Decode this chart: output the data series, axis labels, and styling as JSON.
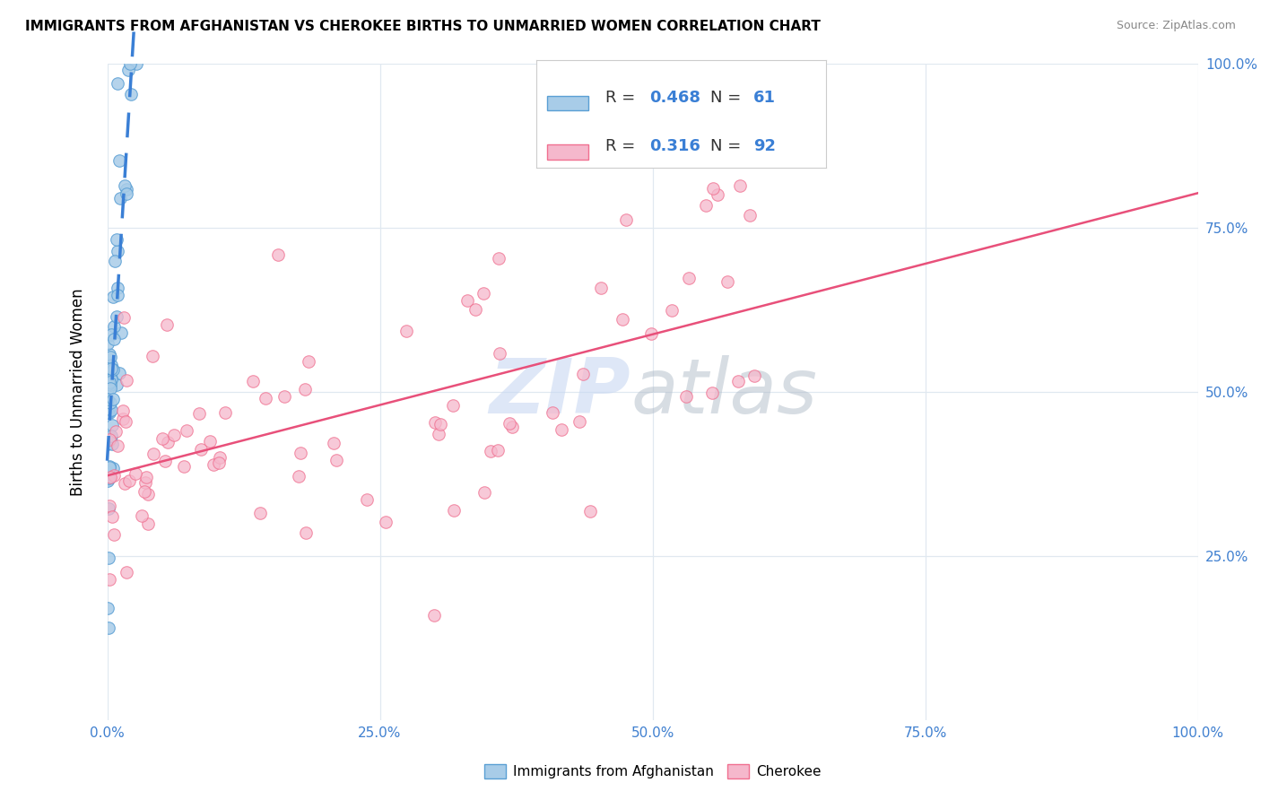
{
  "title": "IMMIGRANTS FROM AFGHANISTAN VS CHEROKEE BIRTHS TO UNMARRIED WOMEN CORRELATION CHART",
  "source": "Source: ZipAtlas.com",
  "ylabel": "Births to Unmarried Women",
  "legend_label1": "Immigrants from Afghanistan",
  "legend_label2": "Cherokee",
  "R1": 0.468,
  "N1": 61,
  "R2": 0.316,
  "N2": 92,
  "color1": "#a8cce8",
  "color2": "#f5b8cc",
  "edge_color1": "#5a9fd4",
  "edge_color2": "#f07090",
  "line_color1": "#3a7fd5",
  "line_color2": "#e8507a",
  "watermark_zip_color": "#c8d8f0",
  "watermark_atlas_color": "#b8c8d8",
  "title_fontsize": 11,
  "axis_tick_color": "#4080d0",
  "grid_color": "#e0e8f0",
  "xlim": [
    0.0,
    1.0
  ],
  "ylim": [
    0.0,
    1.0
  ],
  "xtick_vals": [
    0.0,
    0.25,
    0.5,
    0.75,
    1.0
  ],
  "ytick_vals": [
    0.25,
    0.5,
    0.75,
    1.0
  ],
  "xtick_labels": [
    "0.0%",
    "25.0%",
    "50.0%",
    "75.0%",
    "100.0%"
  ],
  "ytick_labels": [
    "25.0%",
    "50.0%",
    "75.0%",
    "100.0%"
  ]
}
